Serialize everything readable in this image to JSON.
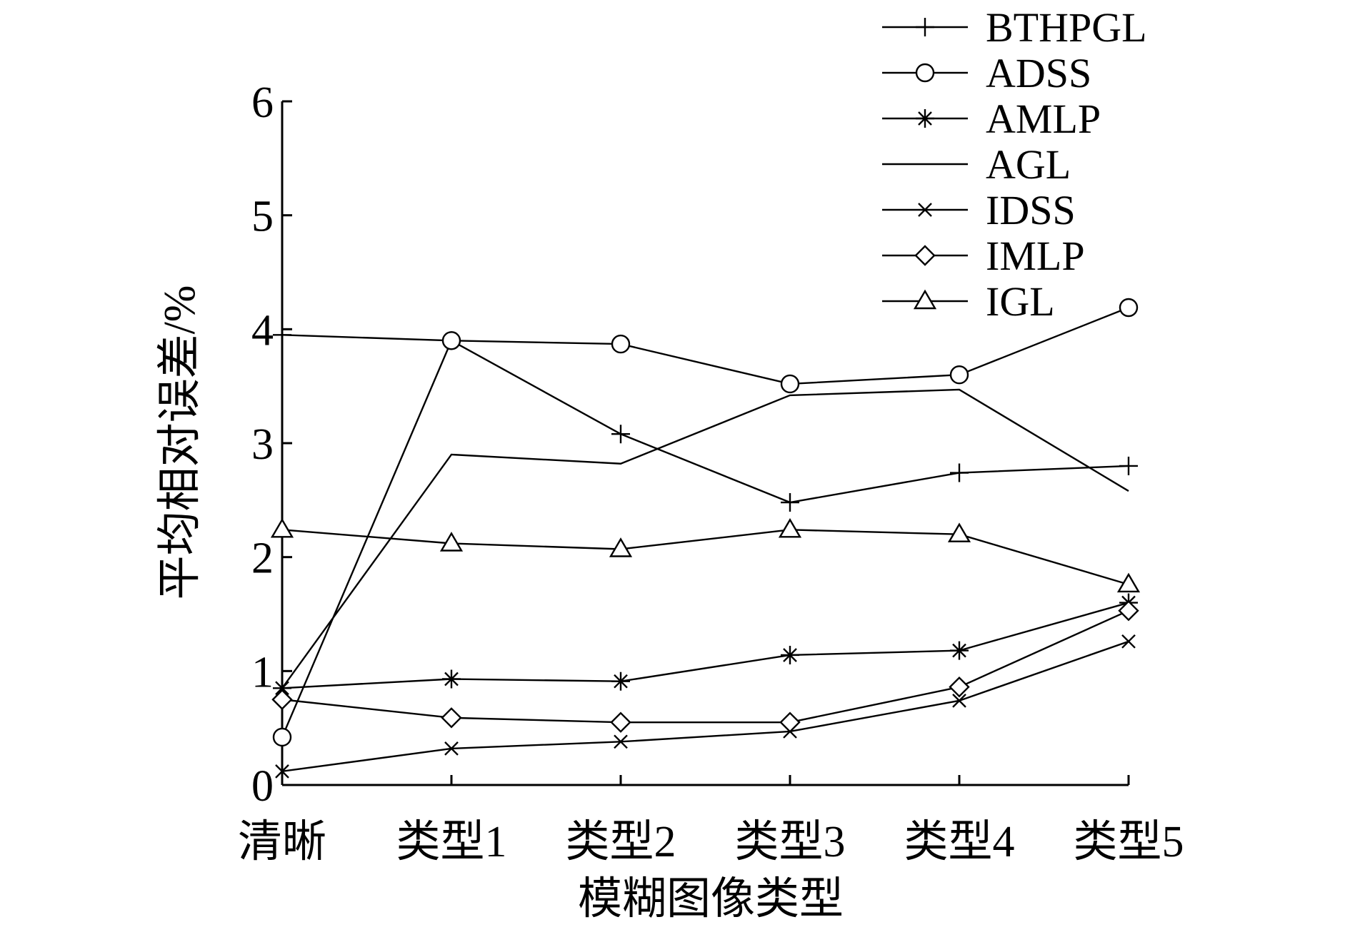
{
  "chart_data": {
    "type": "line",
    "xlabel": "模糊图像类型",
    "ylabel": "平均相对误差/%",
    "categories": [
      "清晰",
      "类型1",
      "类型2",
      "类型3",
      "类型4",
      "类型5"
    ],
    "ylim": [
      0,
      6
    ],
    "yticks": [
      "0",
      "1",
      "2",
      "3",
      "4",
      "5",
      "6"
    ],
    "grid": false,
    "legend": "top-right",
    "series": [
      {
        "name": "BTHPGL",
        "marker": "plus",
        "values": [
          3.95,
          3.9,
          3.08,
          2.48,
          2.74,
          2.8
        ]
      },
      {
        "name": "ADSS",
        "marker": "circle",
        "values": [
          0.42,
          3.9,
          3.87,
          3.52,
          3.6,
          4.19
        ]
      },
      {
        "name": "AMLP",
        "marker": "asterisk",
        "values": [
          0.85,
          0.93,
          0.91,
          1.14,
          1.18,
          1.6
        ]
      },
      {
        "name": "AGL",
        "marker": "none",
        "values": [
          0.85,
          2.9,
          2.82,
          3.42,
          3.47,
          2.58
        ]
      },
      {
        "name": "IDSS",
        "marker": "x",
        "values": [
          0.12,
          0.32,
          0.38,
          0.47,
          0.74,
          1.26
        ]
      },
      {
        "name": "IMLP",
        "marker": "diamond",
        "values": [
          0.75,
          0.59,
          0.55,
          0.55,
          0.86,
          1.53
        ]
      },
      {
        "name": "IGL",
        "marker": "triangle",
        "values": [
          2.24,
          2.12,
          2.07,
          2.24,
          2.2,
          1.76
        ]
      }
    ]
  }
}
